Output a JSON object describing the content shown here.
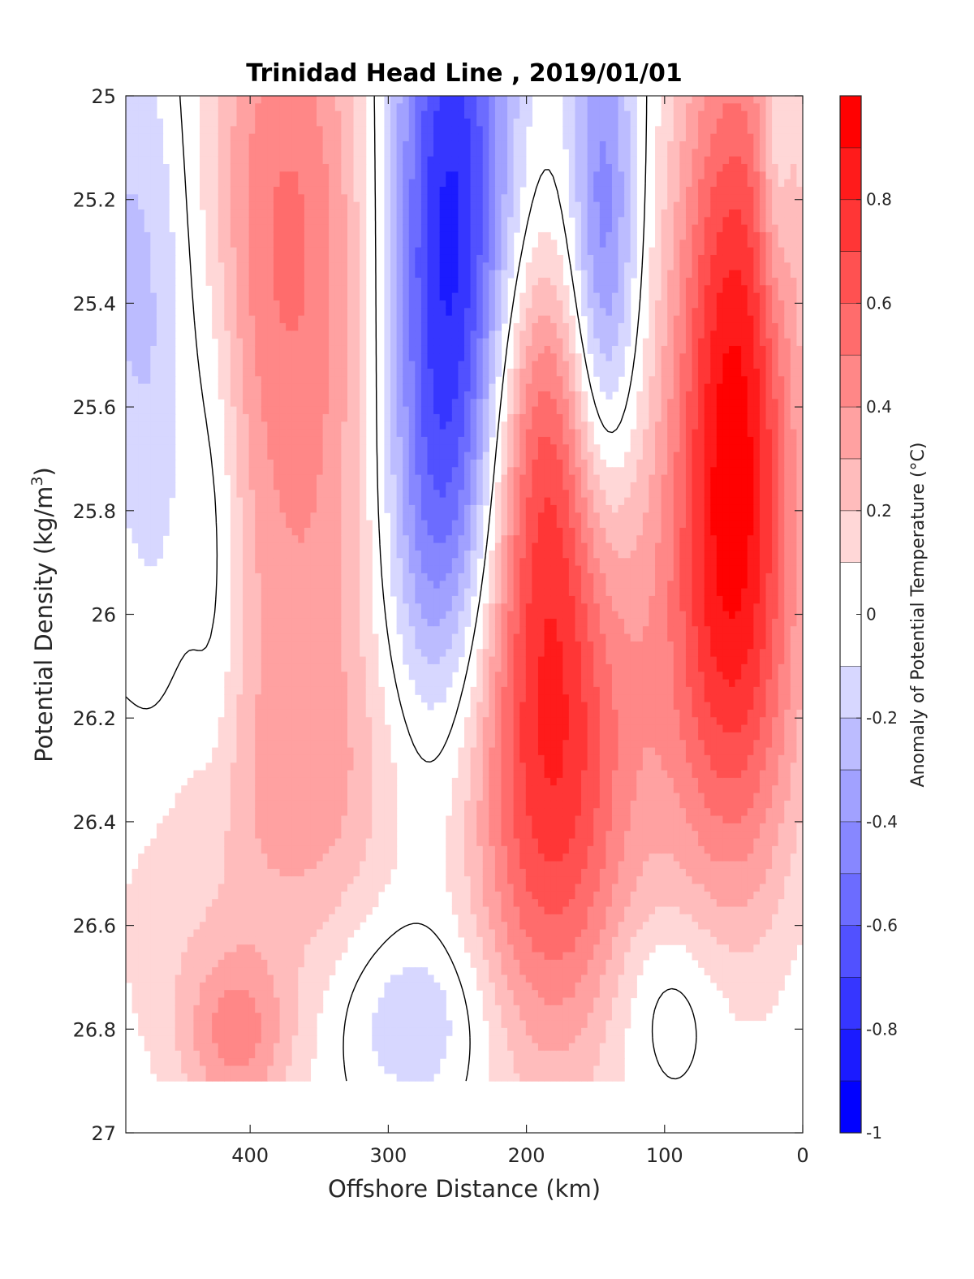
{
  "chart_data": {
    "type": "heatmap",
    "subtype": "filled-contour",
    "title": "Trinidad Head Line , 2019/01/01",
    "xlabel": "Offshore Distance (km)",
    "ylabel": "Potential Density (kg/m",
    "ylabel_superscript": "3",
    "ylabel_suffix": ")",
    "xlim": [
      490,
      0
    ],
    "x_reversed": true,
    "ylim": [
      25,
      27
    ],
    "y_reversed": true,
    "x_ticks": [
      400,
      300,
      200,
      100,
      0
    ],
    "x_tick_labels": [
      "400",
      "300",
      "200",
      "100",
      "0"
    ],
    "y_ticks": [
      25,
      25.2,
      25.4,
      25.6,
      25.8,
      26,
      26.2,
      26.4,
      26.6,
      26.8,
      27
    ],
    "y_tick_labels": [
      "25",
      "25.2",
      "25.4",
      "25.6",
      "25.8",
      "26",
      "26.2",
      "26.4",
      "26.6",
      "26.8",
      "27"
    ],
    "data_bottom_density": 26.9,
    "colorbar": {
      "label": "Anomaly of Potential Temperature (°C)",
      "range": [
        -1,
        1
      ],
      "levels": [
        -1,
        -0.9,
        -0.8,
        -0.7,
        -0.6,
        -0.5,
        -0.4,
        -0.3,
        -0.2,
        -0.1,
        0.1,
        0.2,
        0.3,
        0.4,
        0.5,
        0.6,
        0.7,
        0.8,
        0.9,
        1
      ],
      "tick_values": [
        -1,
        -0.8,
        -0.6,
        -0.4,
        -0.2,
        0,
        0.2,
        0.4,
        0.6,
        0.8
      ],
      "tick_labels": [
        "-1",
        "-0.8",
        "-0.6",
        "-0.4",
        "-0.2",
        "0",
        "0.2",
        "0.4",
        "0.6",
        "0.8"
      ],
      "colormap": "blue-white-red",
      "color_min": "#0000ff",
      "color_zero": "#ffffff",
      "color_max": "#ff0000"
    },
    "zero_contour_color": "#000000",
    "features": [
      {
        "x": 485,
        "y": 25.3,
        "sx": 35,
        "sy": 0.35,
        "amp": -0.22
      },
      {
        "x": 425,
        "y": 25.85,
        "sx": 14,
        "sy": 0.35,
        "amp": -0.16
      },
      {
        "x": 465,
        "y": 25.75,
        "sx": 18,
        "sy": 0.35,
        "amp": -0.1
      },
      {
        "x": 375,
        "y": 25.15,
        "sx": 45,
        "sy": 0.4,
        "amp": 0.42
      },
      {
        "x": 360,
        "y": 25.95,
        "sx": 48,
        "sy": 0.5,
        "amp": 0.32
      },
      {
        "x": 355,
        "y": 26.35,
        "sx": 45,
        "sy": 0.18,
        "amp": 0.13
      },
      {
        "x": 255,
        "y": 25.25,
        "sx": 32,
        "sy": 0.48,
        "amp": -0.85
      },
      {
        "x": 262,
        "y": 25.85,
        "sx": 30,
        "sy": 0.28,
        "amp": -0.3
      },
      {
        "x": 185,
        "y": 26.02,
        "sx": 42,
        "sy": 0.42,
        "amp": 0.63
      },
      {
        "x": 180,
        "y": 26.5,
        "sx": 42,
        "sy": 0.35,
        "amp": 0.35
      },
      {
        "x": 190,
        "y": 25.6,
        "sx": 25,
        "sy": 0.25,
        "amp": 0.25
      },
      {
        "x": 145,
        "y": 25.3,
        "sx": 18,
        "sy": 0.38,
        "amp": -0.52
      },
      {
        "x": 50,
        "y": 25.6,
        "sx": 32,
        "sy": 0.55,
        "amp": 0.88
      },
      {
        "x": 60,
        "y": 26.15,
        "sx": 52,
        "sy": 0.35,
        "amp": 0.25
      },
      {
        "x": 20,
        "y": 25.15,
        "sx": 8,
        "sy": 0.2,
        "amp": -0.2
      },
      {
        "x": 410,
        "y": 26.82,
        "sx": 28,
        "sy": 0.12,
        "amp": 0.35
      },
      {
        "x": 450,
        "y": 26.6,
        "sx": 55,
        "sy": 0.25,
        "amp": 0.13
      },
      {
        "x": 280,
        "y": 26.78,
        "sx": 38,
        "sy": 0.12,
        "amp": -0.22
      },
      {
        "x": 95,
        "y": 26.75,
        "sx": 30,
        "sy": 0.12,
        "amp": -0.15
      }
    ]
  }
}
